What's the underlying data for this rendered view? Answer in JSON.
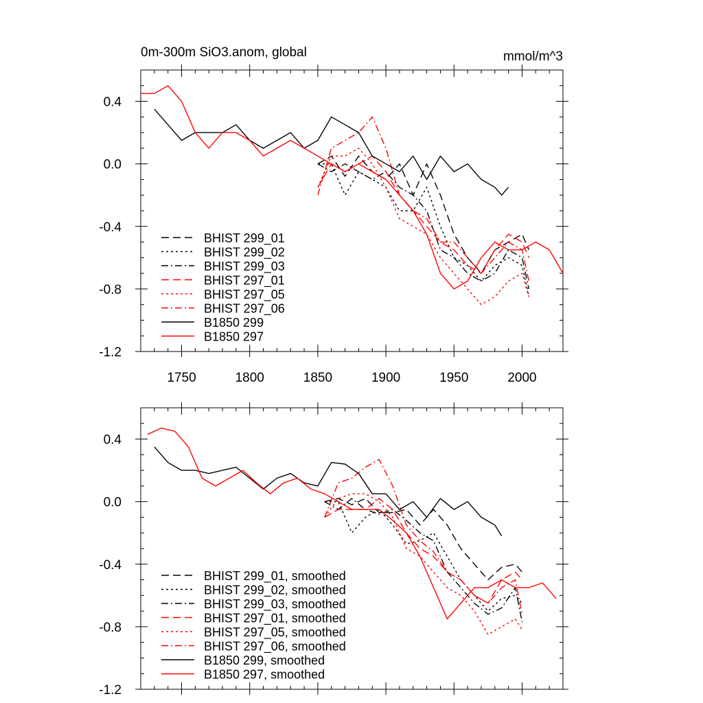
{
  "chart_data": [
    {
      "type": "line",
      "title": "0m-300m SiO3.anom, global",
      "units": "mmol/m^3",
      "xlim": [
        1720,
        2030
      ],
      "ylim": [
        -1.2,
        0.6
      ],
      "x_ticks": [
        1750,
        1800,
        1850,
        1900,
        1950,
        2000
      ],
      "x_tick_labels": [
        "1750",
        "1800",
        "1850",
        "1900",
        "1950",
        "2000"
      ],
      "y_ticks": [
        0.4,
        0.0,
        -0.4,
        -0.8,
        -1.2
      ],
      "y_tick_labels": [
        "0.4",
        "0.0",
        "-0.4",
        "-0.8",
        "-1.2"
      ],
      "legend_position": "bottom-left",
      "series": [
        {
          "name": "BHIST 299_01",
          "color": "#000000",
          "dash": "dashed",
          "x": [
            1850,
            1860,
            1870,
            1880,
            1890,
            1900,
            1910,
            1920,
            1930,
            1940,
            1950,
            1960,
            1970,
            1980,
            1990,
            2000,
            2005
          ],
          "y": [
            0.0,
            0.05,
            -0.08,
            0.05,
            -0.05,
            -0.1,
            0.0,
            -0.2,
            0.0,
            -0.2,
            -0.45,
            -0.6,
            -0.7,
            -0.55,
            -0.5,
            -0.45,
            -0.55
          ]
        },
        {
          "name": "BHIST 299_02",
          "color": "#000000",
          "dash": "dotted",
          "x": [
            1850,
            1860,
            1870,
            1880,
            1890,
            1900,
            1910,
            1920,
            1930,
            1940,
            1950,
            1960,
            1970,
            1980,
            1990,
            2000,
            2005
          ],
          "y": [
            0.0,
            0.0,
            -0.2,
            -0.05,
            -0.1,
            -0.15,
            -0.3,
            -0.3,
            -0.15,
            -0.4,
            -0.6,
            -0.65,
            -0.75,
            -0.65,
            -0.6,
            -0.65,
            -0.85
          ]
        },
        {
          "name": "BHIST 299_03",
          "color": "#000000",
          "dash": "dashdot",
          "x": [
            1850,
            1860,
            1870,
            1880,
            1890,
            1900,
            1910,
            1920,
            1930,
            1940,
            1950,
            1960,
            1970,
            1980,
            1990,
            2000,
            2005
          ],
          "y": [
            0.0,
            -0.05,
            0.0,
            -0.05,
            -0.1,
            -0.05,
            -0.15,
            -0.2,
            -0.3,
            -0.55,
            -0.6,
            -0.7,
            -0.75,
            -0.7,
            -0.55,
            -0.6,
            -0.8
          ]
        },
        {
          "name": "BHIST 297_01",
          "color": "#ff0000",
          "dash": "dashed",
          "x": [
            1850,
            1860,
            1870,
            1880,
            1890,
            1900,
            1910,
            1920,
            1930,
            1940,
            1950,
            1960,
            1970,
            1980,
            1990,
            2000,
            2005
          ],
          "y": [
            -0.15,
            0.0,
            -0.05,
            0.0,
            0.05,
            -0.05,
            -0.2,
            -0.3,
            -0.4,
            -0.5,
            -0.55,
            -0.65,
            -0.7,
            -0.55,
            -0.45,
            -0.5,
            -0.6
          ]
        },
        {
          "name": "BHIST 297_05",
          "color": "#ff0000",
          "dash": "dotted",
          "x": [
            1850,
            1860,
            1870,
            1880,
            1890,
            1900,
            1910,
            1920,
            1930,
            1940,
            1950,
            1960,
            1970,
            1980,
            1990,
            2000,
            2005
          ],
          "y": [
            -0.15,
            0.05,
            0.05,
            0.1,
            0.0,
            -0.15,
            -0.35,
            -0.4,
            -0.45,
            -0.6,
            -0.7,
            -0.8,
            -0.9,
            -0.85,
            -0.75,
            -0.7,
            -0.85
          ]
        },
        {
          "name": "BHIST 297_06",
          "color": "#ff0000",
          "dash": "dashdot",
          "x": [
            1850,
            1860,
            1870,
            1880,
            1890,
            1900,
            1910,
            1920,
            1930,
            1940,
            1950,
            1960,
            1970,
            1980,
            1990,
            2000,
            2005
          ],
          "y": [
            -0.2,
            0.1,
            0.15,
            0.2,
            0.3,
            0.1,
            -0.2,
            -0.3,
            -0.35,
            -0.5,
            -0.5,
            -0.6,
            -0.7,
            -0.6,
            -0.5,
            -0.55,
            -0.75
          ]
        },
        {
          "name": "B1850 299",
          "color": "#000000",
          "dash": "solid",
          "x": [
            1730,
            1740,
            1750,
            1760,
            1770,
            1780,
            1790,
            1800,
            1810,
            1820,
            1830,
            1840,
            1850,
            1860,
            1870,
            1880,
            1890,
            1900,
            1910,
            1920,
            1930,
            1940,
            1950,
            1960,
            1970,
            1980,
            1985,
            1990
          ],
          "y": [
            0.35,
            0.25,
            0.15,
            0.2,
            0.2,
            0.2,
            0.25,
            0.15,
            0.1,
            0.15,
            0.2,
            0.1,
            0.15,
            0.3,
            0.25,
            0.2,
            0.05,
            0.0,
            -0.05,
            0.05,
            -0.1,
            0.05,
            -0.05,
            0.0,
            -0.1,
            -0.15,
            -0.2,
            -0.15
          ]
        },
        {
          "name": "B1850 297",
          "color": "#ff0000",
          "dash": "solid",
          "x": [
            1720,
            1730,
            1740,
            1750,
            1760,
            1770,
            1780,
            1790,
            1800,
            1810,
            1820,
            1830,
            1840,
            1850,
            1860,
            1870,
            1880,
            1890,
            1900,
            1910,
            1920,
            1930,
            1940,
            1950,
            1960,
            1970,
            1980,
            1990,
            2000,
            2010,
            2020,
            2030
          ],
          "y": [
            0.45,
            0.45,
            0.5,
            0.4,
            0.2,
            0.1,
            0.2,
            0.2,
            0.15,
            0.05,
            0.1,
            0.15,
            0.1,
            0.05,
            0.0,
            -0.05,
            0.0,
            -0.05,
            -0.1,
            -0.2,
            -0.3,
            -0.45,
            -0.7,
            -0.8,
            -0.75,
            -0.6,
            -0.5,
            -0.55,
            -0.55,
            -0.5,
            -0.55,
            -0.7
          ]
        }
      ]
    },
    {
      "type": "line",
      "xlim": [
        1720,
        2030
      ],
      "ylim": [
        -1.2,
        0.6
      ],
      "x_ticks": [
        1750,
        1800,
        1850,
        1900,
        1950,
        2000
      ],
      "y_ticks": [
        0.4,
        0.0,
        -0.4,
        -0.8,
        -1.2
      ],
      "y_tick_labels": [
        "0.4",
        "0.0",
        "-0.4",
        "-0.8",
        "-1.2"
      ],
      "legend_position": "bottom-left",
      "series": [
        {
          "name": "BHIST 299_01, smoothed",
          "color": "#000000",
          "dash": "dashed",
          "x": [
            1855,
            1865,
            1875,
            1885,
            1895,
            1905,
            1915,
            1925,
            1935,
            1945,
            1955,
            1965,
            1975,
            1985,
            1995,
            2000
          ],
          "y": [
            0.0,
            0.02,
            -0.02,
            0.02,
            -0.07,
            -0.07,
            -0.05,
            -0.15,
            -0.05,
            -0.15,
            -0.3,
            -0.4,
            -0.5,
            -0.42,
            -0.4,
            -0.45
          ]
        },
        {
          "name": "BHIST 299_02, smoothed",
          "color": "#000000",
          "dash": "dotted",
          "x": [
            1855,
            1865,
            1875,
            1885,
            1895,
            1905,
            1915,
            1925,
            1935,
            1945,
            1955,
            1965,
            1975,
            1985,
            1995,
            2000
          ],
          "y": [
            0.0,
            0.0,
            -0.2,
            -0.1,
            -0.05,
            -0.15,
            -0.27,
            -0.25,
            -0.2,
            -0.35,
            -0.5,
            -0.6,
            -0.7,
            -0.62,
            -0.6,
            -0.65
          ]
        },
        {
          "name": "BHIST 299_03, smoothed",
          "color": "#000000",
          "dash": "dashdot",
          "x": [
            1855,
            1865,
            1875,
            1885,
            1895,
            1905,
            1915,
            1925,
            1935,
            1945,
            1955,
            1965,
            1975,
            1985,
            1995,
            2000
          ],
          "y": [
            0.0,
            -0.05,
            0.02,
            -0.05,
            -0.08,
            -0.05,
            -0.12,
            -0.2,
            -0.25,
            -0.45,
            -0.55,
            -0.65,
            -0.72,
            -0.68,
            -0.55,
            -0.77
          ]
        },
        {
          "name": "BHIST 297_01, smoothed",
          "color": "#ff0000",
          "dash": "dashed",
          "x": [
            1855,
            1865,
            1875,
            1885,
            1895,
            1905,
            1915,
            1925,
            1935,
            1945,
            1955,
            1965,
            1975,
            1985,
            1995,
            2000
          ],
          "y": [
            -0.1,
            -0.05,
            -0.05,
            -0.05,
            0.02,
            -0.05,
            -0.2,
            -0.3,
            -0.35,
            -0.45,
            -0.5,
            -0.6,
            -0.65,
            -0.5,
            -0.45,
            -0.5
          ]
        },
        {
          "name": "BHIST 297_05, smoothed",
          "color": "#ff0000",
          "dash": "dotted",
          "x": [
            1855,
            1865,
            1875,
            1885,
            1895,
            1905,
            1915,
            1925,
            1935,
            1945,
            1955,
            1965,
            1975,
            1985,
            1995,
            2000
          ],
          "y": [
            -0.1,
            0.02,
            0.05,
            0.05,
            0.0,
            -0.1,
            -0.3,
            -0.35,
            -0.45,
            -0.55,
            -0.6,
            -0.7,
            -0.85,
            -0.8,
            -0.75,
            -0.82
          ]
        },
        {
          "name": "BHIST 297_06, smoothed",
          "color": "#ff0000",
          "dash": "dashdot",
          "x": [
            1855,
            1865,
            1875,
            1885,
            1895,
            1905,
            1915,
            1925,
            1935,
            1945,
            1955,
            1965,
            1975,
            1985,
            1995,
            2000
          ],
          "y": [
            -0.1,
            0.12,
            0.15,
            0.22,
            0.27,
            0.1,
            -0.15,
            -0.25,
            -0.32,
            -0.45,
            -0.5,
            -0.6,
            -0.65,
            -0.55,
            -0.5,
            -0.72
          ]
        },
        {
          "name": "B1850 299, smoothed",
          "color": "#000000",
          "dash": "solid",
          "x": [
            1730,
            1740,
            1750,
            1760,
            1770,
            1780,
            1790,
            1800,
            1810,
            1820,
            1830,
            1840,
            1850,
            1860,
            1870,
            1880,
            1890,
            1900,
            1910,
            1920,
            1930,
            1940,
            1950,
            1960,
            1970,
            1980,
            1985
          ],
          "y": [
            0.35,
            0.25,
            0.2,
            0.2,
            0.18,
            0.2,
            0.22,
            0.15,
            0.08,
            0.15,
            0.18,
            0.12,
            0.1,
            0.25,
            0.24,
            0.18,
            0.05,
            0.05,
            -0.05,
            0.0,
            -0.1,
            0.02,
            -0.05,
            0.0,
            -0.1,
            -0.15,
            -0.22
          ]
        },
        {
          "name": "B1850 297, smoothed",
          "color": "#ff0000",
          "dash": "solid",
          "x": [
            1725,
            1735,
            1745,
            1755,
            1765,
            1775,
            1785,
            1795,
            1805,
            1815,
            1825,
            1835,
            1845,
            1855,
            1865,
            1875,
            1885,
            1895,
            1905,
            1915,
            1925,
            1935,
            1945,
            1955,
            1965,
            1975,
            1985,
            1995,
            2005,
            2015,
            2025
          ],
          "y": [
            0.43,
            0.47,
            0.45,
            0.35,
            0.15,
            0.1,
            0.15,
            0.2,
            0.12,
            0.05,
            0.12,
            0.15,
            0.08,
            0.05,
            0.0,
            -0.05,
            -0.05,
            -0.05,
            -0.12,
            -0.2,
            -0.35,
            -0.55,
            -0.75,
            -0.65,
            -0.55,
            -0.55,
            -0.5,
            -0.55,
            -0.55,
            -0.52,
            -0.62
          ]
        }
      ]
    }
  ]
}
